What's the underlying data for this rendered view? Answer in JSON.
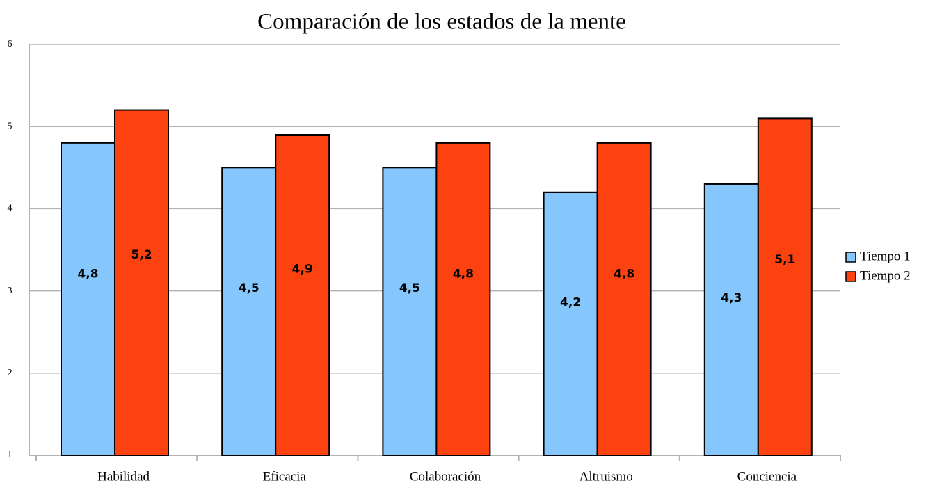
{
  "chart_data": {
    "type": "bar",
    "title": "Comparación de los estados de la mente",
    "categories": [
      "Habilidad",
      "Eficacia",
      "Colaboración",
      "Altruismo",
      "Conciencia"
    ],
    "series": [
      {
        "name": "Tiempo 1",
        "color": "#85c6fc",
        "values": [
          4.8,
          4.5,
          4.5,
          4.2,
          4.3
        ],
        "value_labels": [
          "4,8",
          "4,5",
          "4,5",
          "4,2",
          "4,3"
        ]
      },
      {
        "name": "Tiempo 2",
        "color": "#fc4210",
        "values": [
          5.2,
          4.9,
          4.8,
          4.8,
          5.1
        ],
        "value_labels": [
          "5,2",
          "4,9",
          "4,8",
          "4,8",
          "5,1"
        ]
      }
    ],
    "ylim": [
      1,
      6
    ],
    "yticks": [
      1,
      2,
      3,
      4,
      5,
      6
    ],
    "grid": true,
    "legend": "right"
  }
}
